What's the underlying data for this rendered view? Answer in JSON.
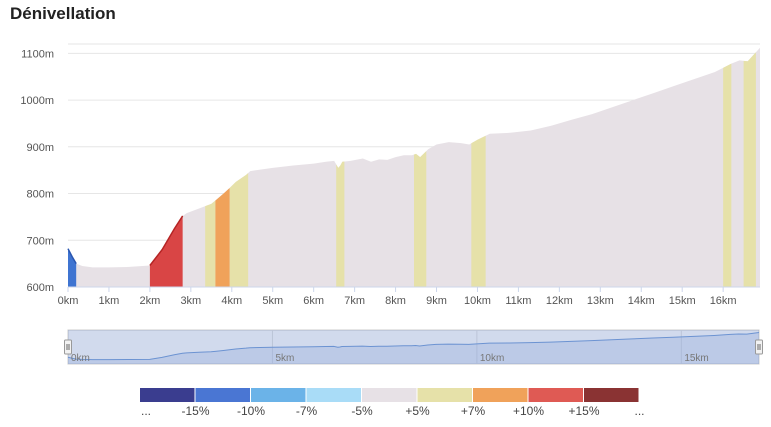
{
  "title": "Dénivellation",
  "chart_data": {
    "type": "area",
    "title": "Dénivellation",
    "xlabel": "",
    "ylabel": "",
    "xlim": [
      0,
      16.9
    ],
    "ylim": [
      600,
      1120
    ],
    "grid": true,
    "x_ticks": [
      {
        "v": 0,
        "label": "0km"
      },
      {
        "v": 1,
        "label": "1km"
      },
      {
        "v": 2,
        "label": "2km"
      },
      {
        "v": 3,
        "label": "3km"
      },
      {
        "v": 4,
        "label": "4km"
      },
      {
        "v": 5,
        "label": "5km"
      },
      {
        "v": 6,
        "label": "6km"
      },
      {
        "v": 7,
        "label": "7km"
      },
      {
        "v": 8,
        "label": "8km"
      },
      {
        "v": 9,
        "label": "9km"
      },
      {
        "v": 10,
        "label": "10km"
      },
      {
        "v": 11,
        "label": "11km"
      },
      {
        "v": 12,
        "label": "12km"
      },
      {
        "v": 13,
        "label": "13km"
      },
      {
        "v": 14,
        "label": "14km"
      },
      {
        "v": 15,
        "label": "15km"
      },
      {
        "v": 16,
        "label": "16km"
      }
    ],
    "y_ticks": [
      {
        "v": 600,
        "label": "600m"
      },
      {
        "v": 700,
        "label": "700m"
      },
      {
        "v": 800,
        "label": "800m"
      },
      {
        "v": 900,
        "label": "900m"
      },
      {
        "v": 1000,
        "label": "1000m"
      },
      {
        "v": 1100,
        "label": "1100m"
      }
    ],
    "profile": [
      [
        0,
        682
      ],
      [
        0.1,
        665
      ],
      [
        0.2,
        650
      ],
      [
        0.35,
        645
      ],
      [
        0.6,
        642
      ],
      [
        1.0,
        642
      ],
      [
        1.5,
        643
      ],
      [
        2.0,
        646
      ],
      [
        2.3,
        680
      ],
      [
        2.6,
        725
      ],
      [
        2.8,
        752
      ],
      [
        2.9,
        758
      ],
      [
        3.2,
        768
      ],
      [
        3.5,
        778
      ],
      [
        3.6,
        785
      ],
      [
        3.8,
        800
      ],
      [
        3.95,
        812
      ],
      [
        4.1,
        825
      ],
      [
        4.35,
        840
      ],
      [
        4.45,
        848
      ],
      [
        5.0,
        855
      ],
      [
        5.5,
        860
      ],
      [
        6.0,
        864
      ],
      [
        6.3,
        868
      ],
      [
        6.5,
        870
      ],
      [
        6.6,
        855
      ],
      [
        6.65,
        860
      ],
      [
        6.7,
        868
      ],
      [
        6.9,
        870
      ],
      [
        7.2,
        875
      ],
      [
        7.4,
        868
      ],
      [
        7.6,
        873
      ],
      [
        7.8,
        872
      ],
      [
        8.0,
        878
      ],
      [
        8.2,
        882
      ],
      [
        8.4,
        882
      ],
      [
        8.5,
        885
      ],
      [
        8.6,
        878
      ],
      [
        8.8,
        895
      ],
      [
        9.0,
        905
      ],
      [
        9.3,
        910
      ],
      [
        9.6,
        908
      ],
      [
        9.8,
        905
      ],
      [
        10.0,
        915
      ],
      [
        10.3,
        928
      ],
      [
        10.8,
        930
      ],
      [
        11.3,
        935
      ],
      [
        11.8,
        945
      ],
      [
        12.3,
        958
      ],
      [
        12.8,
        970
      ],
      [
        13.3,
        985
      ],
      [
        13.8,
        1000
      ],
      [
        14.3,
        1015
      ],
      [
        14.8,
        1030
      ],
      [
        15.3,
        1045
      ],
      [
        15.8,
        1060
      ],
      [
        16.2,
        1078
      ],
      [
        16.4,
        1085
      ],
      [
        16.6,
        1083
      ],
      [
        16.9,
        1112
      ]
    ],
    "segments": [
      {
        "from": 0,
        "to": 0.2,
        "color": "#3f74d1"
      },
      {
        "from": 2.0,
        "to": 2.8,
        "color": "#d94545"
      },
      {
        "from": 3.35,
        "to": 3.6,
        "color": "#e6e1a9"
      },
      {
        "from": 3.6,
        "to": 3.95,
        "color": "#f0a25a"
      },
      {
        "from": 3.95,
        "to": 4.4,
        "color": "#e6e1a9"
      },
      {
        "from": 6.55,
        "to": 6.75,
        "color": "#e6e1a9"
      },
      {
        "from": 8.45,
        "to": 8.75,
        "color": "#e6e1a9"
      },
      {
        "from": 9.85,
        "to": 10.2,
        "color": "#e6e1a9"
      },
      {
        "from": 16.0,
        "to": 16.2,
        "color": "#e6e1a9"
      },
      {
        "from": 16.5,
        "to": 16.8,
        "color": "#e6e1a9"
      }
    ],
    "base_color": "#e7e1e6",
    "navigator": {
      "labels": [
        {
          "v": 0,
          "label": "0km"
        },
        {
          "v": 5,
          "label": "5km"
        },
        {
          "v": 10,
          "label": "10km"
        },
        {
          "v": 15,
          "label": "15km"
        }
      ]
    },
    "legend": [
      {
        "color": "#3a3d8f",
        "label": "..."
      },
      {
        "color": "#4a76d3",
        "label": "-15%"
      },
      {
        "color": "#6bb3e8",
        "label": "-10%"
      },
      {
        "color": "#a9dcf7",
        "label": "-7%"
      },
      {
        "color": "#e7e1e6",
        "label": "-5%"
      },
      {
        "color": "#e6e1a9",
        "label": "+5%"
      },
      {
        "color": "#f0a25a",
        "label": "+7%"
      },
      {
        "color": "#df5a54",
        "label": "+10%"
      },
      {
        "color": "#8a3333",
        "label": "+15%"
      },
      {
        "color": "",
        "label": "..."
      }
    ]
  }
}
